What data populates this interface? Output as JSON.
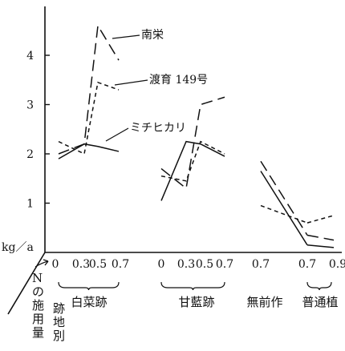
{
  "chart_data": {
    "type": "line",
    "ylabel": "kg／a",
    "ylim": [
      0,
      5
    ],
    "yticks": [
      1,
      2,
      3,
      4
    ],
    "xlabel": "Nの施用量",
    "group_axis_label": "跡地別",
    "groups": [
      {
        "name": "白菜跡",
        "ticks": [
          "0",
          "0.3",
          "0.5",
          "0.7"
        ]
      },
      {
        "name": "甘藍跡",
        "ticks": [
          "0",
          "0.3",
          "0.5",
          "0.7"
        ]
      },
      {
        "name": "無前作",
        "ticks": [
          "0.7"
        ]
      },
      {
        "name": "普通植",
        "ticks": [
          "0.7",
          "0.9"
        ]
      }
    ],
    "series": [
      {
        "name": "南栄",
        "style": "long-dash",
        "segments": [
          [
            [
              0,
              2.0
            ],
            [
              0.3,
              2.2
            ],
            [
              0.5,
              4.6
            ],
            [
              0.7,
              3.9
            ]
          ],
          [
            [
              0,
              1.7
            ],
            [
              0.3,
              1.3
            ],
            [
              0.5,
              3.0
            ],
            [
              0.7,
              3.15
            ]
          ],
          [
            [
              0.7,
              1.85
            ]
          ],
          [
            [
              0.7,
              0.35
            ],
            [
              0.9,
              0.25
            ]
          ]
        ]
      },
      {
        "name": "渡育 149号",
        "style": "short-dash",
        "segments": [
          [
            [
              0,
              2.25
            ],
            [
              0.3,
              2.0
            ],
            [
              0.5,
              3.45
            ],
            [
              0.7,
              3.3
            ]
          ],
          [
            [
              0,
              1.55
            ],
            [
              0.3,
              1.45
            ],
            [
              0.5,
              2.25
            ],
            [
              0.7,
              2.0
            ]
          ],
          [
            [
              0.7,
              0.95
            ]
          ],
          [
            [
              0.7,
              0.6
            ],
            [
              0.9,
              0.75
            ]
          ]
        ]
      },
      {
        "name": "ミチヒカリ",
        "style": "solid",
        "segments": [
          [
            [
              0,
              1.9
            ],
            [
              0.3,
              2.2
            ],
            [
              0.5,
              2.15
            ],
            [
              0.7,
              2.05
            ]
          ],
          [
            [
              0,
              1.05
            ],
            [
              0.3,
              2.25
            ],
            [
              0.5,
              2.2
            ],
            [
              0.7,
              1.95
            ]
          ],
          [
            [
              0.7,
              1.65
            ]
          ],
          [
            [
              0.7,
              0.15
            ],
            [
              0.9,
              0.1
            ]
          ]
        ]
      }
    ]
  }
}
